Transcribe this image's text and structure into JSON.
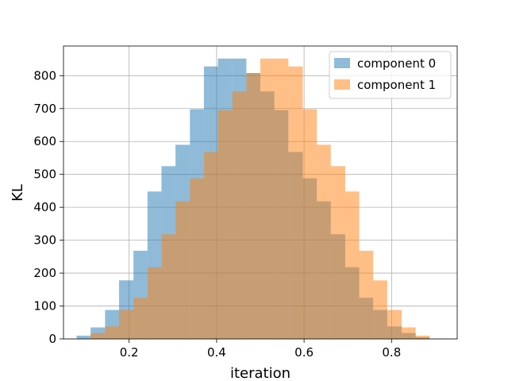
{
  "chart_data": {
    "type": "bar",
    "subtype": "overlapping-histogram",
    "title": "",
    "xlabel": "iteration",
    "ylabel": "KL",
    "xlim": [
      0.05,
      0.95
    ],
    "ylim": [
      0,
      890
    ],
    "xticks": [
      "0.2",
      "0.4",
      "0.6",
      "0.8"
    ],
    "yticks": [
      "0",
      "100",
      "200",
      "300",
      "400",
      "500",
      "600",
      "700",
      "800"
    ],
    "grid": true,
    "legend_position": "top-right",
    "bin_edges": [
      0.08,
      0.112,
      0.145,
      0.177,
      0.21,
      0.242,
      0.274,
      0.306,
      0.339,
      0.371,
      0.403,
      0.436,
      0.468,
      0.5,
      0.532,
      0.564,
      0.597,
      0.629,
      0.661,
      0.694,
      0.726,
      0.758,
      0.79,
      0.823,
      0.855,
      0.887,
      0.92
    ],
    "series": [
      {
        "name": "component 0",
        "color": "#1f77b4",
        "opacity": 0.5,
        "values": [
          10,
          35,
          88,
          178,
          268,
          448,
          525,
          590,
          698,
          828,
          852,
          852,
          808,
          752,
          695,
          568,
          488,
          418,
          318,
          218,
          125,
          88,
          38,
          18,
          5,
          1
        ]
      },
      {
        "name": "component 1",
        "color": "#ff7f0e",
        "opacity": 0.5,
        "values": [
          1,
          18,
          38,
          88,
          125,
          218,
          318,
          418,
          488,
          568,
          695,
          752,
          808,
          852,
          852,
          828,
          698,
          590,
          525,
          448,
          268,
          178,
          88,
          35,
          10,
          1
        ]
      }
    ]
  }
}
